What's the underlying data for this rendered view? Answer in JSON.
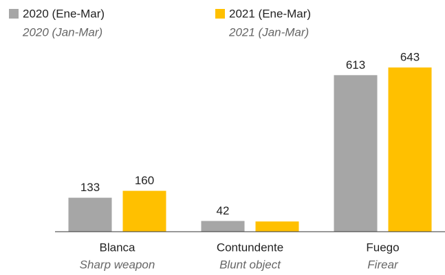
{
  "chart_data": {
    "type": "bar",
    "categories": [
      "Blanca",
      "Contundente",
      "Fuego"
    ],
    "category_translations": [
      "Sharp weapon",
      "Blunt object",
      "Firear"
    ],
    "series": [
      {
        "name": "2020 (Ene-Mar)",
        "name_translation": "2020 (Jan-Mar)",
        "color": "#a6a6a6",
        "values": [
          133,
          42,
          613
        ],
        "value_labels": [
          "133",
          "42",
          "613"
        ]
      },
      {
        "name": "2021 (Ene-Mar)",
        "name_translation": "2021 (Jan-Mar)",
        "color": "#ffc000",
        "values": [
          160,
          40,
          643
        ],
        "value_labels": [
          "160",
          null,
          "643"
        ]
      }
    ],
    "ylim": [
      0,
      700
    ]
  }
}
